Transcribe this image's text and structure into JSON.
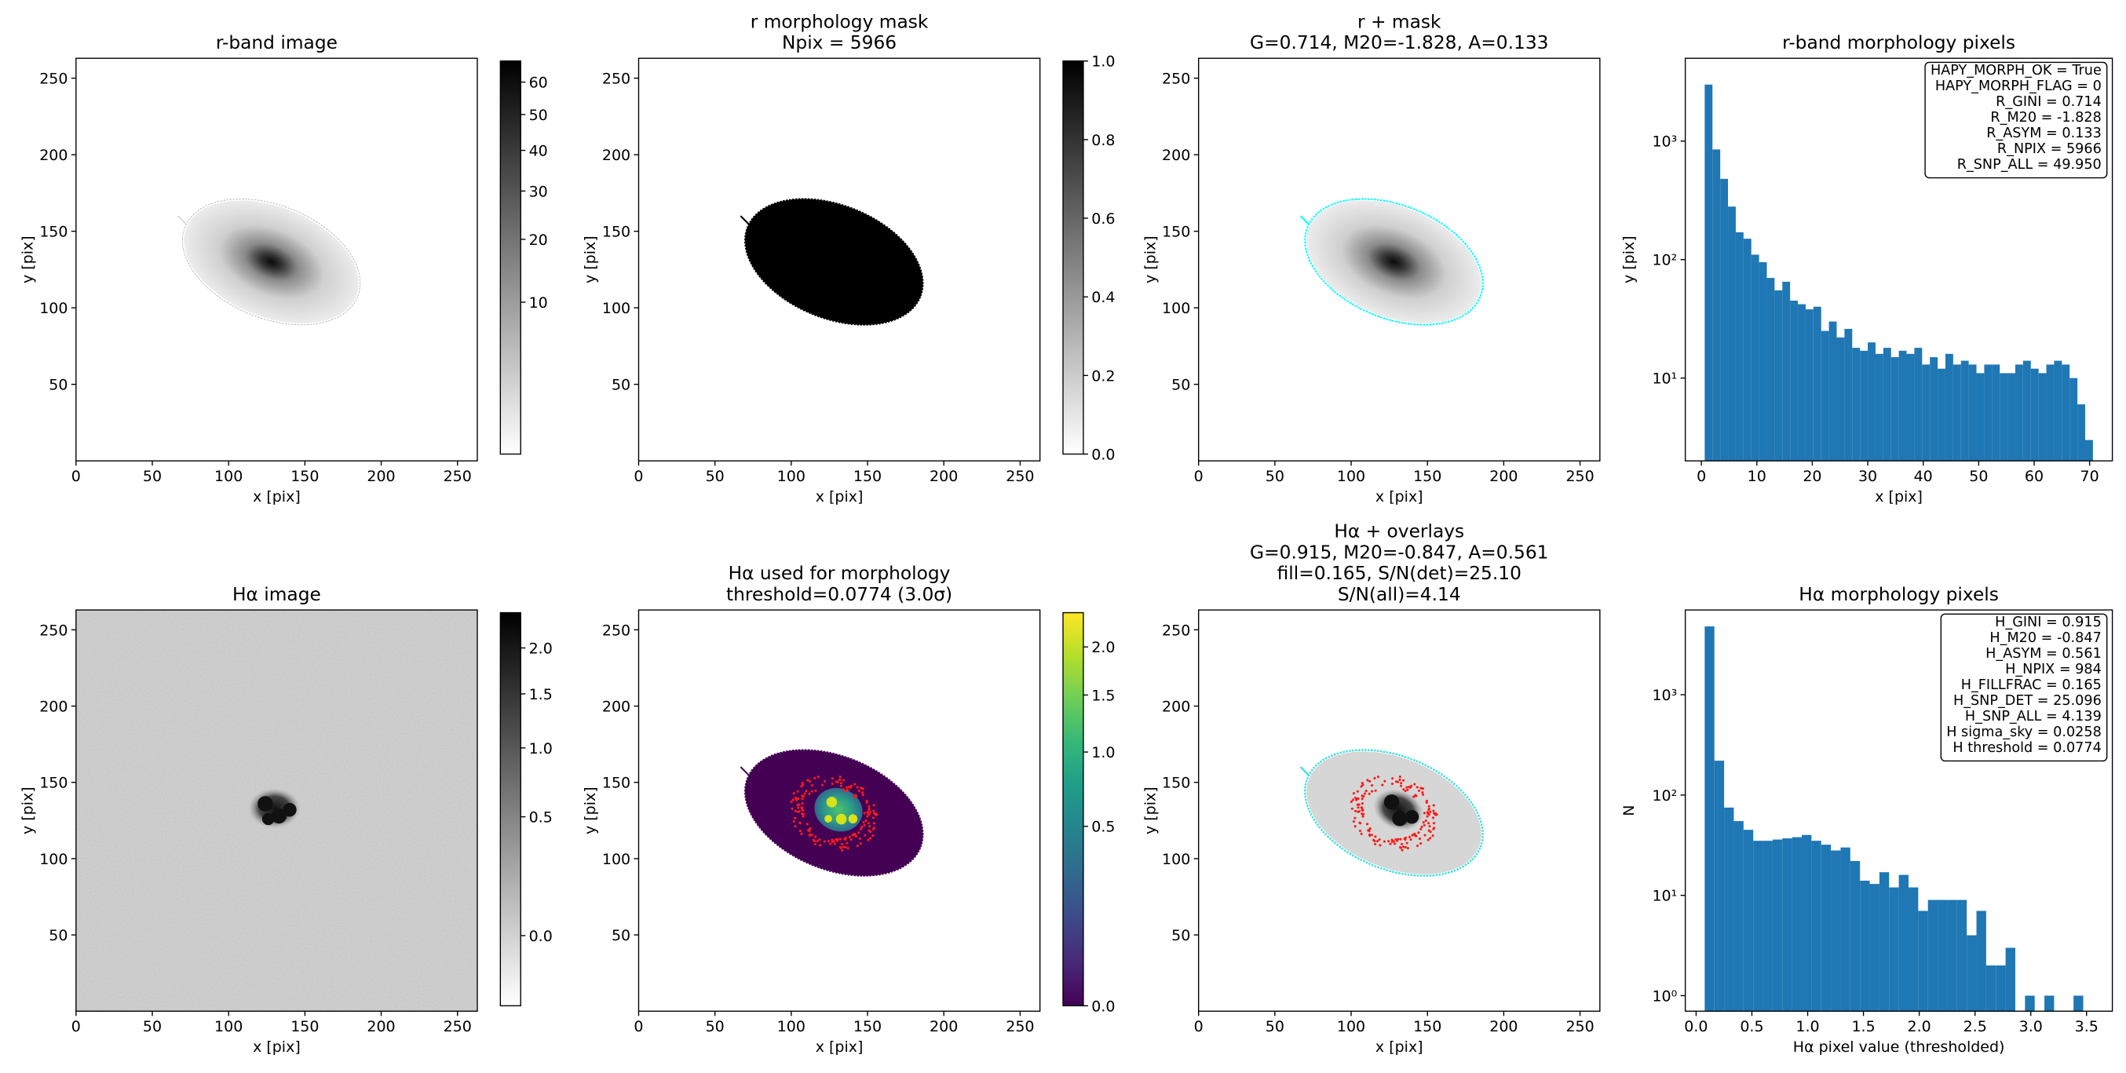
{
  "chart_data": [
    {
      "type": "image",
      "title": [
        "r-band image"
      ],
      "xlabel": "x [pix]",
      "ylabel": "y [pix]",
      "xlim": [
        0,
        263
      ],
      "ylim": [
        0,
        263
      ],
      "xticks": [
        0,
        50,
        100,
        150,
        200,
        250
      ],
      "yticks": [
        50,
        100,
        150,
        200,
        250
      ],
      "colorbar": {
        "cmap": "gray_r",
        "scale": "sqrt",
        "lim": [
          0,
          67
        ],
        "ticks": [
          10,
          20,
          30,
          40,
          50,
          60
        ]
      }
    },
    {
      "type": "image",
      "title": [
        "r morphology mask",
        "Npix = 5966"
      ],
      "xlabel": "x [pix]",
      "ylabel": "y [pix]",
      "xlim": [
        0,
        263
      ],
      "ylim": [
        0,
        263
      ],
      "xticks": [
        0,
        50,
        100,
        150,
        200,
        250
      ],
      "yticks": [
        50,
        100,
        150,
        200,
        250
      ],
      "colorbar": {
        "cmap": "gray_r",
        "scale": "linear",
        "lim": [
          0,
          1
        ],
        "ticks": [
          {
            "value": 0,
            "label": "0.0"
          },
          0.2,
          0.4,
          0.6,
          0.8,
          {
            "value": 1,
            "label": "1.0"
          }
        ]
      }
    },
    {
      "type": "image",
      "title": [
        "r + mask",
        "G=0.714, M20=-1.828, A=0.133"
      ],
      "xlabel": "x [pix]",
      "ylabel": "y [pix]",
      "xlim": [
        0,
        263
      ],
      "ylim": [
        0,
        263
      ],
      "xticks": [
        0,
        50,
        100,
        150,
        200,
        250
      ],
      "yticks": [
        50,
        100,
        150,
        200,
        250
      ]
    },
    {
      "type": "histogram",
      "title": [
        "r-band morphology pixels"
      ],
      "xlabel": "x [pix]",
      "ylabel": "y [pix]",
      "color": "#1f77b4",
      "log_y": true,
      "xlim": [
        -2.9,
        74.1
      ],
      "ylim": [
        2,
        5000
      ],
      "xticks": [
        0,
        10,
        20,
        30,
        40,
        50,
        60,
        70
      ],
      "yticks": [
        {
          "value": 10,
          "label": "10¹"
        },
        {
          "value": 100,
          "label": "10²"
        },
        {
          "value": 1000,
          "label": "10³"
        }
      ],
      "bins": [
        0.6,
        2,
        3.4,
        4.8,
        6.2,
        7.6,
        9,
        10.4,
        11.8,
        13.2,
        14.6,
        16,
        17.4,
        18.8,
        20.2,
        21.6,
        23,
        24.4,
        25.8,
        27.2,
        28.6,
        30,
        31.4,
        32.8,
        34.2,
        35.6,
        37,
        38.4,
        39.8,
        41.2,
        42.6,
        44,
        45.4,
        46.8,
        48.2,
        49.6,
        51,
        52.4,
        53.8,
        55.2,
        56.6,
        58,
        59.4,
        60.8,
        62.2,
        63.6,
        65,
        66.4,
        67.8,
        69.2,
        70.6
      ],
      "values": [
        3000,
        850,
        480,
        280,
        170,
        150,
        110,
        95,
        70,
        55,
        65,
        45,
        42,
        38,
        40,
        25,
        30,
        22,
        26,
        18,
        17,
        20,
        16,
        18,
        15,
        17,
        16,
        18,
        13,
        15,
        12,
        16,
        13,
        14,
        13,
        11,
        13,
        13,
        11,
        11,
        13,
        14,
        12,
        11,
        13,
        14,
        13,
        10,
        6,
        3
      ],
      "annotation": [
        "HAPY_MORPH_OK = True",
        "HAPY_MORPH_FLAG = 0",
        "R_GINI = 0.714",
        "R_M20 = -1.828",
        "R_ASYM = 0.133",
        "R_NPIX = 5966",
        "R_SNP_ALL = 49.950"
      ]
    },
    {
      "type": "image",
      "title": [
        "Hα image"
      ],
      "xlabel": "x [pix]",
      "ylabel": "y [pix]",
      "xlim": [
        0,
        263
      ],
      "ylim": [
        0,
        263
      ],
      "xticks": [
        0,
        50,
        100,
        150,
        200,
        250
      ],
      "yticks": [
        50,
        100,
        150,
        200,
        250
      ],
      "colorbar": {
        "cmap": "gray_r",
        "scale": "sqrt",
        "lim": [
          -0.08,
          2.43
        ],
        "ticks": [
          {
            "value": 0,
            "label": "0.0"
          },
          0.5,
          {
            "value": 1,
            "label": "1.0"
          },
          1.5,
          {
            "value": 2,
            "label": "2.0"
          }
        ]
      }
    },
    {
      "type": "image",
      "title": [
        "Hα used for morphology",
        "threshold=0.0774 (3.0σ)"
      ],
      "xlabel": "x [pix]",
      "ylabel": "y [pix]",
      "xlim": [
        0,
        263
      ],
      "ylim": [
        0,
        263
      ],
      "xticks": [
        0,
        50,
        100,
        150,
        200,
        250
      ],
      "yticks": [
        50,
        100,
        150,
        200,
        250
      ],
      "colorbar": {
        "cmap": "viridis",
        "scale": "sqrt",
        "lim": [
          0,
          2.4
        ],
        "ticks": [
          {
            "value": 0,
            "label": "0.0"
          },
          0.5,
          {
            "value": 1,
            "label": "1.0"
          },
          1.5,
          {
            "value": 2,
            "label": "2.0"
          }
        ]
      }
    },
    {
      "type": "image",
      "title": [
        "Hα + overlays",
        "G=0.915, M20=-0.847, A=0.561",
        "fill=0.165, S/N(det)=25.10",
        "S/N(all)=4.14"
      ],
      "xlabel": "x [pix]",
      "ylabel": "y [pix]",
      "xlim": [
        0,
        263
      ],
      "ylim": [
        0,
        263
      ],
      "xticks": [
        0,
        50,
        100,
        150,
        200,
        250
      ],
      "yticks": [
        50,
        100,
        150,
        200,
        250
      ]
    },
    {
      "type": "histogram",
      "title": [
        "Hα morphology pixels"
      ],
      "xlabel": "Hα pixel value (thresholded)",
      "ylabel": "N",
      "color": "#1f77b4",
      "log_y": true,
      "xlim": [
        -0.097,
        3.731
      ],
      "ylim": [
        0.7,
        7000
      ],
      "xticks": [
        {
          "value": 0,
          "label": "0.0"
        },
        0.5,
        {
          "value": 1,
          "label": "1.0"
        },
        1.5,
        {
          "value": 2,
          "label": "2.0"
        },
        2.5,
        {
          "value": 3,
          "label": "3.0"
        },
        3.5
      ],
      "yticks": [
        {
          "value": 1,
          "label": "10⁰"
        },
        {
          "value": 10,
          "label": "10¹"
        },
        {
          "value": 100,
          "label": "10²"
        },
        {
          "value": 1000,
          "label": "10³"
        }
      ],
      "bins": [
        0.077,
        0.164,
        0.251,
        0.338,
        0.425,
        0.512,
        0.599,
        0.686,
        0.773,
        0.86,
        0.947,
        1.034,
        1.121,
        1.208,
        1.295,
        1.382,
        1.469,
        1.556,
        1.643,
        1.73,
        1.817,
        1.904,
        1.991,
        2.078,
        2.165,
        2.252,
        2.339,
        2.426,
        2.513,
        2.6,
        2.687,
        2.774,
        2.861,
        2.948,
        3.035,
        3.122,
        3.209,
        3.296,
        3.383,
        3.47,
        3.557
      ],
      "values": [
        4800,
        220,
        75,
        55,
        45,
        35,
        35,
        36,
        37,
        38,
        40,
        35,
        32,
        28,
        30,
        22,
        14,
        13,
        17,
        12,
        16,
        12,
        7,
        9,
        9,
        9,
        9,
        4,
        7,
        2,
        2,
        3,
        0,
        1,
        0,
        1,
        0,
        0,
        1,
        0
      ],
      "annotation": [
        "H_GINI = 0.915",
        "H_M20 = -0.847",
        "H_ASYM = 0.561",
        "H_NPIX = 984",
        "H_FILLFRAC = 0.165",
        "H_SNP_DET = 25.096",
        "H_SNP_ALL = 4.139",
        "H sigma_sky = 0.0258",
        "H threshold = 0.0774"
      ]
    }
  ]
}
